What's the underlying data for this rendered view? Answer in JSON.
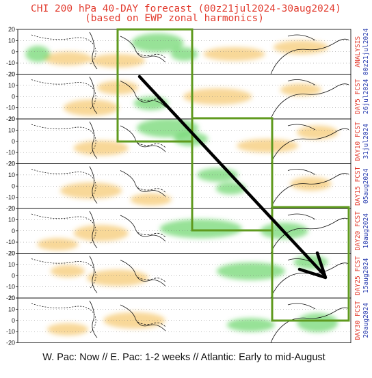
{
  "title": {
    "line1": "CHI 200 hPa 40-DAY forecast (00z21jul2024-30aug2024)",
    "line2": "(based on EWP zonal harmonics)"
  },
  "caption": "W. Pac: Now // E. Pac: 1-2 weeks // Atlantic: Early to mid-August",
  "colors": {
    "title": "#e23b2e",
    "label_red": "#e23b2e",
    "label_blue": "#2b3fb0",
    "box": "#5f9a1e",
    "arrow": "#000000",
    "divergence_green": "#5fd35f",
    "convergence_orange": "#f2b233"
  },
  "chart_data": {
    "type": "heatmap",
    "field": "CHI 200 hPa",
    "y_ticks": [
      "20",
      "10",
      "0",
      "-10",
      "-20"
    ],
    "ylim": [
      -20,
      20
    ],
    "panels": [
      {
        "label": "ANALYSIS",
        "date": "00z21jul2024",
        "label_color": "red"
      },
      {
        "label": "DAY5 FCST",
        "date": "26jul2024",
        "label_color": "red"
      },
      {
        "label": "DAY10 FCST",
        "date": "31jul2024",
        "label_color": "red"
      },
      {
        "label": "DAY15 FCST",
        "date": "05aug2024",
        "label_color": "red"
      },
      {
        "label": "DAY20 FCST",
        "date": "10aug2024",
        "label_color": "red"
      },
      {
        "label": "DAY25 FCST",
        "date": "15aug2024",
        "label_color": "red"
      },
      {
        "label": "DAY30 FCST",
        "date": "20aug2024",
        "label_color": "red"
      }
    ]
  }
}
